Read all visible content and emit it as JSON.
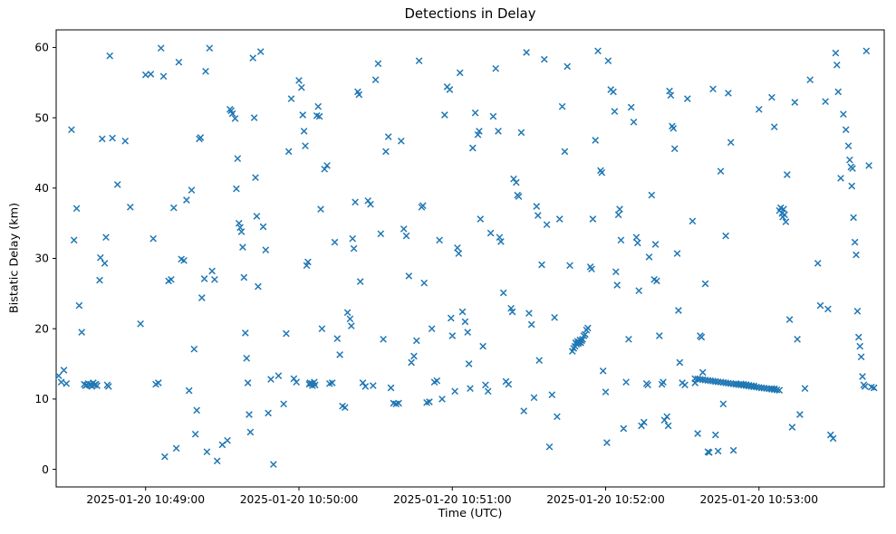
{
  "figure": {
    "title": "Detections in Delay",
    "xlabel": "Time (UTC)",
    "ylabel": "Bistatic Delay (km)"
  },
  "chart_data": {
    "type": "scatter",
    "title": "Detections in Delay",
    "xlabel": "Time (UTC)",
    "ylabel": "Bistatic Delay (km)",
    "marker": "x",
    "marker_color": "#1f77b4",
    "grid": false,
    "legend": "none",
    "x_unit": "seconds after 2025-01-20 10:48:00 UTC",
    "x_range": [
      25,
      349
    ],
    "y_range": [
      -2.5,
      62.5
    ],
    "x_ticks": [
      {
        "value": 60,
        "label": "2025-01-20 10:49:00"
      },
      {
        "value": 120,
        "label": "2025-01-20 10:50:00"
      },
      {
        "value": 180,
        "label": "2025-01-20 10:51:00"
      },
      {
        "value": 240,
        "label": "2025-01-20 10:52:00"
      },
      {
        "value": 300,
        "label": "2025-01-20 10:53:00"
      }
    ],
    "y_ticks": [
      0,
      10,
      20,
      30,
      40,
      50,
      60
    ],
    "points": [
      [
        26,
        13.3
      ],
      [
        27,
        12.4
      ],
      [
        28,
        14.1
      ],
      [
        29,
        12.2
      ],
      [
        31,
        48.3
      ],
      [
        32,
        32.6
      ],
      [
        33,
        37.1
      ],
      [
        34,
        23.3
      ],
      [
        35,
        19.5
      ],
      [
        36,
        12.1
      ],
      [
        36.5,
        11.9
      ],
      [
        37,
        12.0
      ],
      [
        37.5,
        12.2
      ],
      [
        38,
        12.0
      ],
      [
        38.5,
        12.1
      ],
      [
        39,
        11.8
      ],
      [
        39.5,
        12.3
      ],
      [
        40,
        12.0
      ],
      [
        40.5,
        12.1
      ],
      [
        41,
        11.9
      ],
      [
        42,
        26.9
      ],
      [
        42.3,
        30.1
      ],
      [
        43,
        47.0
      ],
      [
        44,
        29.3
      ],
      [
        44.5,
        33.0
      ],
      [
        45,
        12.0
      ],
      [
        45.5,
        11.8
      ],
      [
        46,
        58.8
      ],
      [
        47,
        47.1
      ],
      [
        49,
        40.5
      ],
      [
        52,
        46.7
      ],
      [
        54,
        37.3
      ],
      [
        58,
        20.7
      ],
      [
        60,
        56.1
      ],
      [
        62,
        56.2
      ],
      [
        63,
        32.8
      ],
      [
        64,
        12.1
      ],
      [
        65,
        12.3
      ],
      [
        66,
        59.9
      ],
      [
        67,
        55.9
      ],
      [
        67.5,
        1.8
      ],
      [
        69,
        26.8
      ],
      [
        70,
        27.0
      ],
      [
        71,
        37.2
      ],
      [
        72,
        3.0
      ],
      [
        73,
        57.9
      ],
      [
        74,
        29.9
      ],
      [
        75,
        29.7
      ],
      [
        76,
        38.3
      ],
      [
        77,
        11.2
      ],
      [
        78,
        39.7
      ],
      [
        79,
        17.1
      ],
      [
        79.5,
        5.0
      ],
      [
        80,
        8.4
      ],
      [
        81,
        47.0
      ],
      [
        81.5,
        47.2
      ],
      [
        82,
        24.4
      ],
      [
        83,
        27.1
      ],
      [
        83.5,
        56.6
      ],
      [
        84,
        2.5
      ],
      [
        85,
        59.9
      ],
      [
        86,
        28.2
      ],
      [
        87,
        27.0
      ],
      [
        88,
        1.2
      ],
      [
        90,
        3.5
      ],
      [
        92,
        4.1
      ],
      [
        93,
        51.2
      ],
      [
        93.5,
        51.0
      ],
      [
        94,
        50.6
      ],
      [
        95,
        49.9
      ],
      [
        95.5,
        39.9
      ],
      [
        96,
        44.2
      ],
      [
        96.5,
        35.0
      ],
      [
        97,
        34.4
      ],
      [
        97.5,
        33.8
      ],
      [
        98,
        31.6
      ],
      [
        98.5,
        27.3
      ],
      [
        99,
        19.4
      ],
      [
        99.5,
        15.8
      ],
      [
        100,
        12.3
      ],
      [
        100.5,
        7.8
      ],
      [
        101,
        5.3
      ],
      [
        102,
        58.5
      ],
      [
        102.5,
        50.0
      ],
      [
        103,
        41.5
      ],
      [
        103.5,
        36.0
      ],
      [
        104,
        26.0
      ],
      [
        105,
        59.4
      ],
      [
        106,
        34.5
      ],
      [
        107,
        31.2
      ],
      [
        108,
        8.0
      ],
      [
        109,
        12.8
      ],
      [
        110,
        0.7
      ],
      [
        112,
        13.3
      ],
      [
        114,
        9.3
      ],
      [
        115,
        19.3
      ],
      [
        116,
        45.2
      ],
      [
        117,
        52.7
      ],
      [
        118,
        12.9
      ],
      [
        119,
        12.4
      ],
      [
        120,
        55.3
      ],
      [
        121,
        54.3
      ],
      [
        121.5,
        50.4
      ],
      [
        122,
        48.1
      ],
      [
        122.5,
        46.0
      ],
      [
        123,
        29.0
      ],
      [
        123.5,
        29.5
      ],
      [
        124,
        12.1
      ],
      [
        124.3,
        12.3
      ],
      [
        125,
        12.2
      ],
      [
        125.3,
        11.9
      ],
      [
        126,
        12.4
      ],
      [
        126.3,
        12.0
      ],
      [
        127,
        50.3
      ],
      [
        127.5,
        51.6
      ],
      [
        128,
        50.2
      ],
      [
        128.5,
        37.0
      ],
      [
        129,
        20.0
      ],
      [
        130,
        42.7
      ],
      [
        131,
        43.2
      ],
      [
        132,
        12.2
      ],
      [
        133,
        12.3
      ],
      [
        134,
        32.3
      ],
      [
        135,
        18.6
      ],
      [
        136,
        16.3
      ],
      [
        137,
        9.0
      ],
      [
        138,
        8.8
      ],
      [
        139,
        22.3
      ],
      [
        140,
        21.4
      ],
      [
        140.5,
        20.4
      ],
      [
        141,
        32.8
      ],
      [
        141.5,
        31.4
      ],
      [
        142,
        38.0
      ],
      [
        143,
        53.7
      ],
      [
        143.5,
        53.3
      ],
      [
        144,
        26.7
      ],
      [
        145,
        12.3
      ],
      [
        146,
        11.8
      ],
      [
        147,
        38.2
      ],
      [
        148,
        37.7
      ],
      [
        149,
        11.9
      ],
      [
        150,
        55.4
      ],
      [
        151,
        57.7
      ],
      [
        152,
        33.5
      ],
      [
        153,
        18.5
      ],
      [
        154,
        45.2
      ],
      [
        155,
        47.3
      ],
      [
        156,
        11.6
      ],
      [
        157,
        9.4
      ],
      [
        158,
        9.3
      ],
      [
        159,
        9.4
      ],
      [
        160,
        46.7
      ],
      [
        161,
        34.2
      ],
      [
        162,
        33.2
      ],
      [
        163,
        27.5
      ],
      [
        164,
        15.2
      ],
      [
        165,
        16.1
      ],
      [
        166,
        18.3
      ],
      [
        167,
        58.1
      ],
      [
        168,
        37.3
      ],
      [
        168.5,
        37.5
      ],
      [
        169,
        26.5
      ],
      [
        170,
        9.5
      ],
      [
        171,
        9.6
      ],
      [
        172,
        20.0
      ],
      [
        173,
        12.4
      ],
      [
        174,
        12.6
      ],
      [
        175,
        32.6
      ],
      [
        176,
        10.0
      ],
      [
        177,
        50.4
      ],
      [
        178,
        54.4
      ],
      [
        179,
        54.0
      ],
      [
        179.5,
        21.5
      ],
      [
        180,
        19.0
      ],
      [
        181,
        11.1
      ],
      [
        182,
        31.5
      ],
      [
        182.5,
        30.7
      ],
      [
        183,
        56.4
      ],
      [
        184,
        22.4
      ],
      [
        185,
        21.0
      ],
      [
        186,
        19.5
      ],
      [
        186.5,
        15.0
      ],
      [
        187,
        11.5
      ],
      [
        188,
        45.7
      ],
      [
        189,
        50.7
      ],
      [
        190,
        47.6
      ],
      [
        190.5,
        48.1
      ],
      [
        191,
        35.6
      ],
      [
        192,
        17.5
      ],
      [
        193,
        12.0
      ],
      [
        194,
        11.1
      ],
      [
        195,
        33.6
      ],
      [
        196,
        50.2
      ],
      [
        197,
        57.0
      ],
      [
        198,
        48.1
      ],
      [
        198.5,
        33.0
      ],
      [
        199,
        32.4
      ],
      [
        200,
        25.1
      ],
      [
        201,
        12.5
      ],
      [
        202,
        12.1
      ],
      [
        203,
        22.9
      ],
      [
        203.5,
        22.4
      ],
      [
        204,
        41.3
      ],
      [
        205,
        40.8
      ],
      [
        205.5,
        39.0
      ],
      [
        206,
        38.8
      ],
      [
        207,
        47.9
      ],
      [
        208,
        8.3
      ],
      [
        209,
        59.3
      ],
      [
        210,
        22.2
      ],
      [
        211,
        20.6
      ],
      [
        212,
        10.2
      ],
      [
        213,
        37.4
      ],
      [
        213.5,
        36.1
      ],
      [
        214,
        15.5
      ],
      [
        215,
        29.1
      ],
      [
        216,
        58.3
      ],
      [
        217,
        34.8
      ],
      [
        218,
        3.2
      ],
      [
        219,
        10.6
      ],
      [
        220,
        21.6
      ],
      [
        221,
        7.5
      ],
      [
        222,
        35.6
      ],
      [
        223,
        51.6
      ],
      [
        224,
        45.2
      ],
      [
        225,
        57.3
      ],
      [
        226,
        29.0
      ],
      [
        227,
        16.8
      ],
      [
        227.5,
        17.2
      ],
      [
        228,
        17.5
      ],
      [
        228.3,
        18.0
      ],
      [
        228.6,
        17.8
      ],
      [
        229,
        18.2
      ],
      [
        229.3,
        17.9
      ],
      [
        229.6,
        18.1
      ],
      [
        230,
        18.4
      ],
      [
        230.3,
        18.0
      ],
      [
        230.6,
        18.3
      ],
      [
        231,
        18.5
      ],
      [
        231.5,
        19.0
      ],
      [
        232,
        19.2
      ],
      [
        232.5,
        19.8
      ],
      [
        233,
        20.1
      ],
      [
        234,
        28.8
      ],
      [
        234.5,
        28.5
      ],
      [
        235,
        35.6
      ],
      [
        236,
        46.8
      ],
      [
        237,
        59.5
      ],
      [
        238,
        42.5
      ],
      [
        238.5,
        42.2
      ],
      [
        239,
        14.0
      ],
      [
        240,
        11.0
      ],
      [
        240.5,
        3.8
      ],
      [
        241,
        58.1
      ],
      [
        242,
        54.0
      ],
      [
        243,
        53.7
      ],
      [
        243.5,
        50.9
      ],
      [
        244,
        28.1
      ],
      [
        244.5,
        26.2
      ],
      [
        245,
        36.2
      ],
      [
        245.5,
        37.0
      ],
      [
        246,
        32.6
      ],
      [
        247,
        5.8
      ],
      [
        248,
        12.4
      ],
      [
        249,
        18.5
      ],
      [
        250,
        51.5
      ],
      [
        251,
        49.4
      ],
      [
        252,
        33.0
      ],
      [
        252.5,
        32.2
      ],
      [
        253,
        25.4
      ],
      [
        254,
        6.2
      ],
      [
        255,
        6.7
      ],
      [
        256,
        12.2
      ],
      [
        256.5,
        12.0
      ],
      [
        257,
        30.2
      ],
      [
        258,
        39.0
      ],
      [
        259,
        27.0
      ],
      [
        259.5,
        32.0
      ],
      [
        260,
        26.8
      ],
      [
        261,
        19.0
      ],
      [
        262,
        12.1
      ],
      [
        262.5,
        12.4
      ],
      [
        263,
        7.0
      ],
      [
        264,
        7.5
      ],
      [
        264.5,
        6.2
      ],
      [
        265,
        53.8
      ],
      [
        265.5,
        53.2
      ],
      [
        266,
        48.8
      ],
      [
        266.5,
        48.5
      ],
      [
        267,
        45.6
      ],
      [
        268,
        30.7
      ],
      [
        268.5,
        22.6
      ],
      [
        269,
        15.2
      ],
      [
        270,
        12.3
      ],
      [
        271,
        12.0
      ],
      [
        272,
        52.7
      ],
      [
        274,
        35.3
      ],
      [
        275,
        12.3
      ],
      [
        276,
        5.1
      ],
      [
        277,
        19.0
      ],
      [
        277.5,
        18.8
      ],
      [
        278,
        13.8
      ],
      [
        279,
        26.4
      ],
      [
        280,
        2.5
      ],
      [
        280.5,
        2.4
      ],
      [
        282,
        54.1
      ],
      [
        283,
        4.9
      ],
      [
        284,
        2.6
      ],
      [
        285,
        42.4
      ],
      [
        286,
        9.3
      ],
      [
        287,
        33.2
      ],
      [
        288,
        53.5
      ],
      [
        289,
        46.5
      ],
      [
        290,
        2.7
      ],
      [
        275,
        12.9
      ],
      [
        276,
        12.85
      ],
      [
        277,
        12.8
      ],
      [
        278,
        12.75
      ],
      [
        279,
        12.7
      ],
      [
        280,
        12.65
      ],
      [
        281,
        12.6
      ],
      [
        282,
        12.55
      ],
      [
        283,
        12.5
      ],
      [
        284,
        12.45
      ],
      [
        285,
        12.4
      ],
      [
        286,
        12.35
      ],
      [
        287,
        12.3
      ],
      [
        288,
        12.25
      ],
      [
        289,
        12.2
      ],
      [
        290,
        12.15
      ],
      [
        291,
        12.1
      ],
      [
        292,
        12.05
      ],
      [
        293,
        12.0
      ],
      [
        294,
        11.95
      ],
      [
        295,
        11.9
      ],
      [
        296,
        11.85
      ],
      [
        297,
        11.8
      ],
      [
        298,
        11.75
      ],
      [
        299,
        11.7
      ],
      [
        300,
        11.65
      ],
      [
        301,
        11.6
      ],
      [
        302,
        11.55
      ],
      [
        303,
        11.5
      ],
      [
        304,
        11.45
      ],
      [
        305,
        11.4
      ],
      [
        306,
        11.35
      ],
      [
        307,
        11.3
      ],
      [
        308,
        11.25
      ],
      [
        291,
        12.2
      ],
      [
        292,
        12.1
      ],
      [
        293,
        12.15
      ],
      [
        294,
        12.1
      ],
      [
        295,
        12.05
      ],
      [
        296,
        11.95
      ],
      [
        297,
        11.9
      ],
      [
        298,
        11.85
      ],
      [
        305,
        11.5
      ],
      [
        306,
        11.45
      ],
      [
        300,
        51.2
      ],
      [
        305,
        52.9
      ],
      [
        306,
        48.7
      ],
      [
        308,
        36.8
      ],
      [
        308.5,
        37.2
      ],
      [
        309,
        36.4
      ],
      [
        309.3,
        35.9
      ],
      [
        309.6,
        37.0
      ],
      [
        310,
        36.2
      ],
      [
        310.5,
        35.2
      ],
      [
        311,
        41.9
      ],
      [
        312,
        21.3
      ],
      [
        313,
        6.0
      ],
      [
        314,
        52.2
      ],
      [
        315,
        18.5
      ],
      [
        316,
        7.8
      ],
      [
        318,
        11.5
      ],
      [
        320,
        55.4
      ],
      [
        323,
        29.3
      ],
      [
        324,
        23.3
      ],
      [
        326,
        52.3
      ],
      [
        327,
        22.8
      ],
      [
        328,
        4.9
      ],
      [
        329,
        4.4
      ],
      [
        330,
        59.2
      ],
      [
        330.5,
        57.5
      ],
      [
        331,
        53.7
      ],
      [
        332,
        41.4
      ],
      [
        333,
        50.5
      ],
      [
        334,
        48.3
      ],
      [
        335,
        46.0
      ],
      [
        335.5,
        44.0
      ],
      [
        336,
        43.0
      ],
      [
        336.3,
        40.3
      ],
      [
        336.6,
        42.8
      ],
      [
        337,
        35.8
      ],
      [
        337.5,
        32.3
      ],
      [
        338,
        30.5
      ],
      [
        338.5,
        22.5
      ],
      [
        339,
        18.8
      ],
      [
        339.5,
        17.5
      ],
      [
        340,
        16.0
      ],
      [
        340.5,
        13.2
      ],
      [
        341,
        12.0
      ],
      [
        341.5,
        11.8
      ],
      [
        342,
        59.5
      ],
      [
        343,
        43.2
      ],
      [
        344,
        11.7
      ],
      [
        345,
        11.6
      ]
    ]
  }
}
